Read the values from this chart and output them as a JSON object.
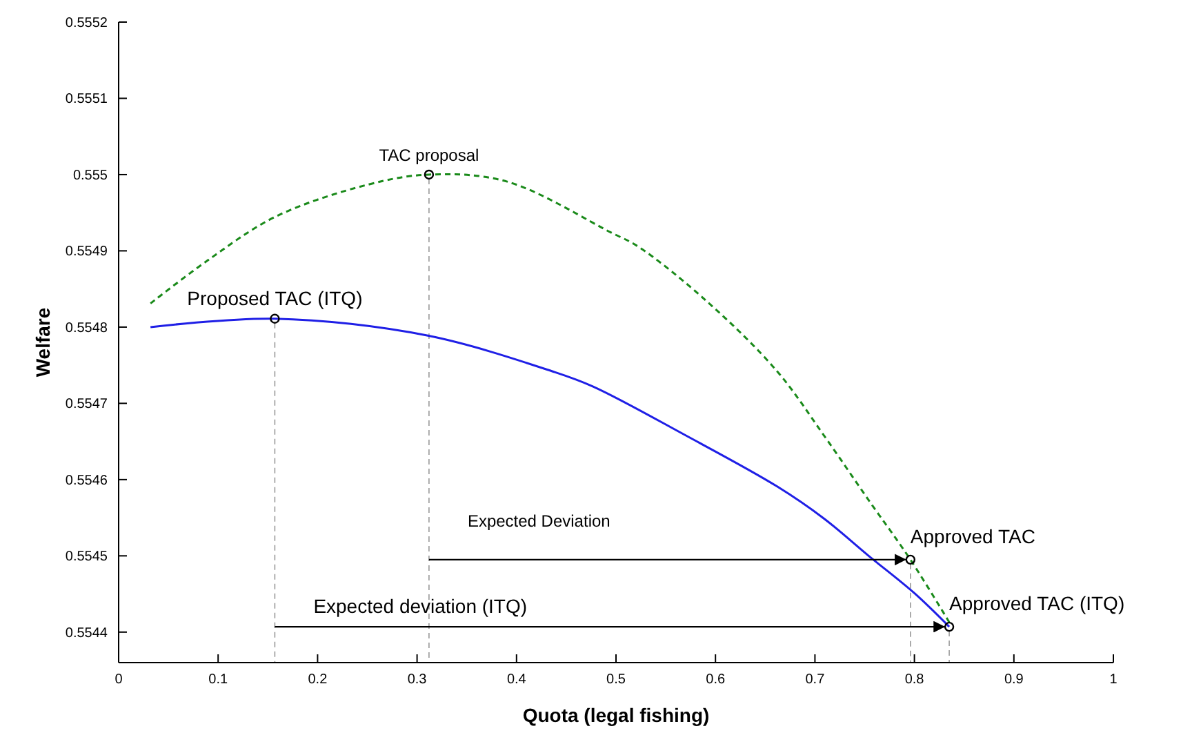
{
  "chart_data": {
    "type": "line",
    "xlabel": "Quota (legal fishing)",
    "ylabel": "Welfare",
    "xlim": [
      0,
      1
    ],
    "xticks": [
      0,
      0.1,
      0.2,
      0.3,
      0.4,
      0.5,
      0.6,
      0.7,
      0.8,
      0.9,
      1
    ],
    "ylim": [
      0.55436,
      0.5552
    ],
    "yticks": [
      0.5544,
      0.5545,
      0.5546,
      0.5547,
      0.5548,
      0.5549,
      0.555,
      0.5551,
      0.5552
    ],
    "grid": false,
    "series": [
      {
        "color": "#1a8a1a",
        "line_style": "dashed",
        "x": [
          0.032,
          0.089,
          0.158,
          0.251,
          0.312,
          0.39,
          0.495,
          0.523,
          0.592,
          0.662,
          0.709,
          0.754,
          0.796,
          0.835
        ],
        "values": [
          0.554831,
          0.554887,
          0.554945,
          0.554987,
          0.555,
          0.554991,
          0.554924,
          0.554905,
          0.554833,
          0.554742,
          0.554658,
          0.554573,
          0.554495,
          0.554413
        ]
      },
      {
        "color": "#1f1fe6",
        "line_style": "solid",
        "x": [
          0.032,
          0.157,
          0.31,
          0.436,
          0.477,
          0.57,
          0.662,
          0.709,
          0.754,
          0.8,
          0.835
        ],
        "values": [
          0.5548,
          0.554811,
          0.554789,
          0.554742,
          0.554722,
          0.554658,
          0.554591,
          0.554549,
          0.5545,
          0.554451,
          0.554407
        ]
      },
      {
        "type": "scatter",
        "color": "#000000",
        "marker": "circle",
        "x": [
          0.157,
          0.312,
          0.796,
          0.835
        ],
        "values": [
          0.554811,
          0.555,
          0.554495,
          0.554407
        ]
      }
    ],
    "annotations": [
      {
        "text": "Proposed TAC (ITQ)",
        "x": 0.157,
        "y": 0.554811
      },
      {
        "text": "TAC proposal",
        "x": 0.312,
        "y": 0.555
      },
      {
        "text": "Approved TAC",
        "x": 0.796,
        "y": 0.554495
      },
      {
        "text": "Approved TAC (ITQ)",
        "x": 0.835,
        "y": 0.554407
      },
      "Expected Deviation",
      "Expected deviation (ITQ)"
    ]
  }
}
